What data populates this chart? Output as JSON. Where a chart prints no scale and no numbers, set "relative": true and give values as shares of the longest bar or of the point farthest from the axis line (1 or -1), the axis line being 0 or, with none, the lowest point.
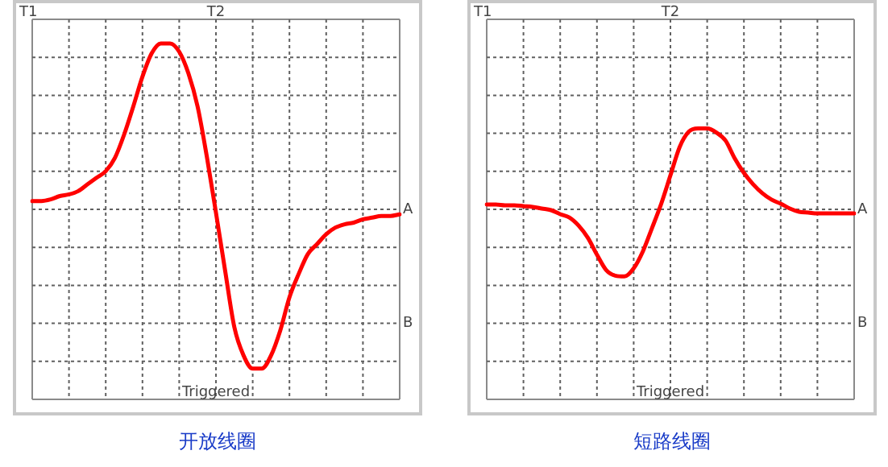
{
  "chart_data": [
    {
      "type": "line",
      "title": "开放线圈",
      "relative": true,
      "grid": true,
      "tick_labels": false,
      "legend": false,
      "marker": "none",
      "line_style": "solid",
      "categories": [
        null,
        null,
        null,
        null,
        null,
        null,
        null,
        null,
        null,
        null,
        null,
        null,
        null,
        null,
        null,
        null,
        null,
        null,
        null,
        null,
        null,
        null,
        null,
        null,
        null,
        null,
        null,
        null,
        null,
        null,
        null,
        null,
        null,
        null,
        null,
        null,
        null,
        null,
        null,
        null,
        null
      ],
      "series": [
        {
          "color": "#ff0000",
          "values": [
            0.05,
            0.05,
            0.06,
            0.08,
            0.09,
            0.11,
            0.15,
            0.19,
            0.23,
            0.31,
            0.45,
            0.62,
            0.8,
            0.94,
            1,
            1,
            0.95,
            0.82,
            0.62,
            0.32,
            -0.02,
            -0.37,
            -0.71,
            -0.88,
            -0.96,
            -0.96,
            -0.88,
            -0.73,
            -0.53,
            -0.39,
            -0.27,
            -0.21,
            -0.15,
            -0.11,
            -0.09,
            -0.08,
            -0.06,
            -0.05,
            -0.04,
            -0.04,
            -0.03
          ]
        }
      ],
      "annotations": [
        "T1",
        "T2",
        "A",
        "B",
        "Triggered"
      ]
    },
    {
      "type": "line",
      "title": "短路线圈",
      "relative": true,
      "grid": true,
      "tick_labels": false,
      "legend": false,
      "marker": "none",
      "line_style": "solid",
      "categories": [
        null,
        null,
        null,
        null,
        null,
        null,
        null,
        null,
        null,
        null,
        null,
        null,
        null,
        null,
        null,
        null,
        null,
        null,
        null,
        null,
        null,
        null,
        null,
        null,
        null,
        null,
        null,
        null,
        null,
        null,
        null,
        null,
        null,
        null,
        null,
        null,
        null,
        null,
        null,
        null,
        null
      ],
      "series": [
        {
          "color": "#ff0000",
          "values": [
            0.06,
            0.06,
            0.05,
            0.05,
            0.04,
            0.03,
            0.01,
            -0.01,
            -0.06,
            -0.1,
            -0.2,
            -0.35,
            -0.56,
            -0.75,
            -0.82,
            -0.83,
            -0.73,
            -0.52,
            -0.23,
            0.07,
            0.42,
            0.77,
            0.96,
            1,
            1,
            0.95,
            0.85,
            0.63,
            0.45,
            0.31,
            0.2,
            0.12,
            0.07,
            0.01,
            -0.03,
            -0.04,
            -0.05,
            -0.05,
            -0.05,
            -0.05,
            -0.05
          ]
        }
      ],
      "annotations": [
        "T1",
        "T2",
        "A",
        "B",
        "Triggered"
      ]
    }
  ]
}
